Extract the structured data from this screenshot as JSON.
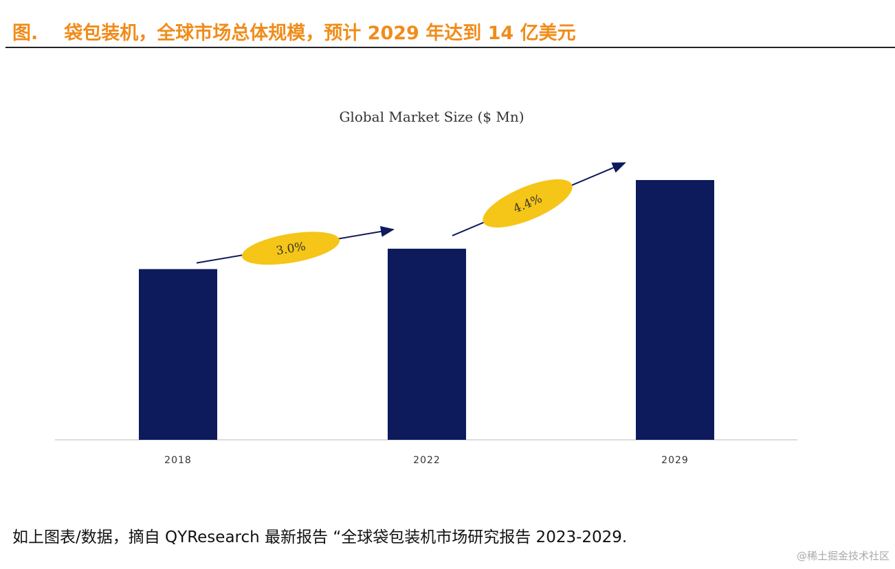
{
  "figure": {
    "label": "图.",
    "title": "袋包装机，全球市场总体规模，预计 2029 年达到 14 亿美元"
  },
  "chart_data": {
    "type": "bar",
    "title": "Global Market Size ($ Mn)",
    "categories": [
      "2018",
      "2022",
      "2029"
    ],
    "values": [
      920,
      1030,
      1400
    ],
    "ylim": [
      0,
      1400
    ],
    "grid": false,
    "bar_color": "#0d1a5c",
    "annotations": [
      {
        "text": "3.0%",
        "from": "2018",
        "to": "2022",
        "color": "#f5c518"
      },
      {
        "text": "4.4%",
        "from": "2022",
        "to": "2029",
        "color": "#f5c518"
      }
    ]
  },
  "source": "如上图表/数据，摘自 QYResearch 最新报告 “全球袋包装机市场研究报告 2023-2029.",
  "watermark": "@稀土掘金技术社区"
}
